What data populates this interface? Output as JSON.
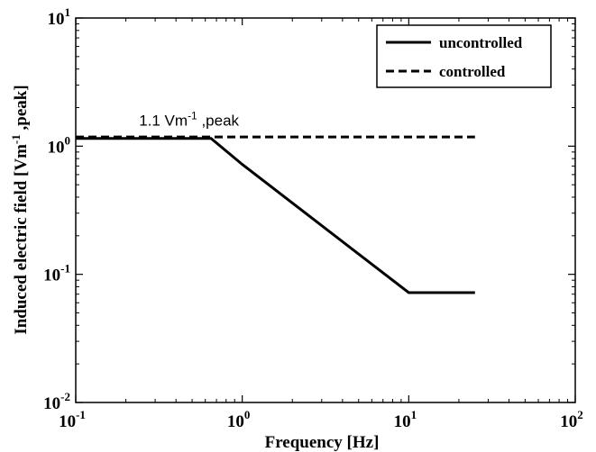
{
  "chart_data": {
    "type": "line",
    "xlabel": "Frequency [Hz]",
    "ylabel": {
      "prefix": "Induced electric field [Vm",
      "sup": "-1",
      "suffix": " ,peak]"
    },
    "x_scale": "log",
    "y_scale": "log",
    "xlim": [
      0.1,
      100
    ],
    "ylim": [
      0.01,
      10
    ],
    "x_ticks": [
      {
        "value": 0.1,
        "base": "10",
        "exp": "-1"
      },
      {
        "value": 1,
        "base": "10",
        "exp": "0"
      },
      {
        "value": 10,
        "base": "10",
        "exp": "1"
      },
      {
        "value": 100,
        "base": "10",
        "exp": "2"
      }
    ],
    "y_ticks": [
      {
        "value": 0.01,
        "base": "10",
        "exp": "-2"
      },
      {
        "value": 0.1,
        "base": "10",
        "exp": "-1"
      },
      {
        "value": 1,
        "base": "10",
        "exp": "0"
      },
      {
        "value": 10,
        "base": "10",
        "exp": "1"
      }
    ],
    "grid": false,
    "legend_position": "top-right",
    "series": [
      {
        "name": "uncontrolled",
        "style": "solid",
        "color": "#000000",
        "points": [
          [
            0.1,
            1.15
          ],
          [
            0.65,
            1.15
          ],
          [
            1,
            0.72
          ],
          [
            10,
            0.072
          ],
          [
            25,
            0.072
          ]
        ]
      },
      {
        "name": "controlled",
        "style": "dashed",
        "color": "#000000",
        "points": [
          [
            0.1,
            1.18
          ],
          [
            25,
            1.18
          ]
        ]
      }
    ],
    "annotations": [
      {
        "prefix": "1.1 Vm",
        "sup": "-1",
        "suffix": " ,peak",
        "x": 0.24,
        "y": 1.45
      }
    ]
  }
}
